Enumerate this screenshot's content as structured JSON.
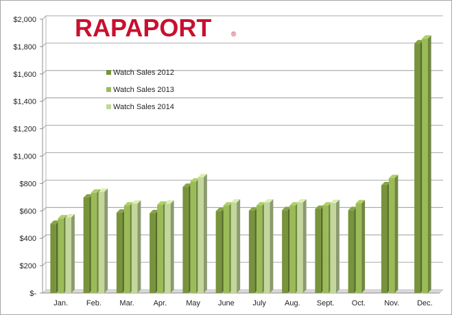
{
  "logo": {
    "text": "RAPAPORT",
    "mark": "®"
  },
  "chart_data": {
    "type": "bar",
    "bar_style": "3d-clustered",
    "categories": [
      "Jan.",
      "Feb.",
      "Mar.",
      "Apr.",
      "May",
      "June",
      "July",
      "Aug.",
      "Sept.",
      "Oct.",
      "Nov.",
      "Dec."
    ],
    "series": [
      {
        "name": "Watch Sales 2012",
        "color": "#77933c",
        "values": [
          505,
          697,
          587,
          583,
          775,
          598,
          602,
          605,
          614,
          605,
          787,
          1823
        ]
      },
      {
        "name": "Watch Sales 2013",
        "color": "#9bbb59",
        "values": [
          545,
          733,
          639,
          645,
          814,
          639,
          639,
          639,
          639,
          655,
          839,
          1858
        ]
      },
      {
        "name": "Watch Sales 2014",
        "color": "#c3d69b",
        "values": [
          552,
          739,
          653,
          653,
          845,
          661,
          661,
          661,
          657,
          null,
          null,
          null
        ]
      }
    ],
    "y_ticks": [
      "$-",
      "$200",
      "$400",
      "$600",
      "$800",
      "$1,000",
      "$1,200",
      "$1,400",
      "$1,600",
      "$1,800",
      "$2,000"
    ],
    "ylim": [
      0,
      2000
    ],
    "y_step": 200,
    "grid": true,
    "legend": "top-left"
  }
}
